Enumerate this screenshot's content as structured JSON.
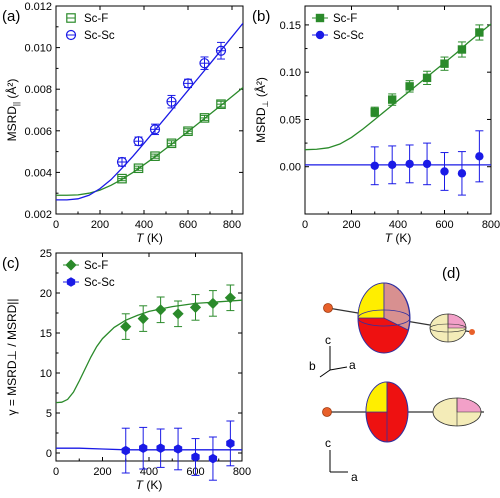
{
  "colors": {
    "green": "#2a8a2a",
    "blue": "#1a1ae6",
    "red": "#ee1111",
    "yellow": "#ffee00",
    "pink": "#f2a0c8",
    "cream": "#f4ecb8",
    "orange": "#e8602a"
  },
  "chart_data": [
    {
      "panel": "(a)",
      "type": "scatter",
      "ylabel": "MSRD",
      "ylabel_sub": "||",
      "ylabel_unit": " (Å²)",
      "xlabel": "T",
      "xlabel_unit": " (K)",
      "xlim": [
        0,
        850
      ],
      "ylim": [
        0.002,
        0.012
      ],
      "xticks": [
        0,
        200,
        400,
        600,
        800
      ],
      "yticks": [
        0.002,
        0.004,
        0.006,
        0.008,
        0.01,
        0.012
      ],
      "yticklabels": [
        "0.002",
        "0.004",
        "0.006",
        "0.008",
        "0.010",
        "0.012"
      ],
      "legend_position": "top-left",
      "series": [
        {
          "name": "Sc-F",
          "marker": "open-square",
          "color": "#2a8a2a",
          "x": [
            300,
            375,
            450,
            525,
            600,
            675,
            750
          ],
          "y": [
            0.0037,
            0.0042,
            0.00478,
            0.0054,
            0.00598,
            0.00662,
            0.00728
          ],
          "err": [
            0.0001,
            0.0001,
            0.0001,
            0.00012,
            0.00012,
            0.00012,
            0.00014
          ],
          "fit_x": [
            0,
            50,
            100,
            150,
            200,
            250,
            300,
            350,
            400,
            450,
            500,
            550,
            600,
            650,
            700,
            750,
            800,
            850
          ],
          "fit_y": [
            0.0029,
            0.0029,
            0.00292,
            0.003,
            0.00315,
            0.00338,
            0.00367,
            0.004,
            0.00437,
            0.00475,
            0.00515,
            0.00555,
            0.00596,
            0.00638,
            0.0068,
            0.00722,
            0.00765,
            0.00808
          ]
        },
        {
          "name": "Sc-Sc",
          "marker": "open-circle",
          "color": "#1a1ae6",
          "x": [
            300,
            375,
            450,
            525,
            600,
            675,
            750
          ],
          "y": [
            0.0045,
            0.0055,
            0.00607,
            0.0074,
            0.00828,
            0.00925,
            0.00985
          ],
          "err": [
            0.0002,
            0.0002,
            0.00025,
            0.0003,
            0.0002,
            0.0003,
            0.0004
          ],
          "fit_x": [
            0,
            50,
            100,
            150,
            200,
            250,
            300,
            350,
            400,
            450,
            500,
            550,
            600,
            650,
            700,
            750,
            800,
            850
          ],
          "fit_y": [
            0.00268,
            0.00268,
            0.00273,
            0.0029,
            0.00322,
            0.00365,
            0.0042,
            0.00478,
            0.0054,
            0.00603,
            0.00666,
            0.0073,
            0.00794,
            0.00858,
            0.00922,
            0.00987,
            0.01052,
            0.01117
          ]
        }
      ]
    },
    {
      "panel": "(b)",
      "type": "scatter",
      "ylabel": "MSRD",
      "ylabel_sub": "⊥",
      "ylabel_unit": " (Å²)",
      "xlabel": "T",
      "xlabel_unit": " (K)",
      "xlim": [
        0,
        800
      ],
      "ylim": [
        -0.05,
        0.17
      ],
      "xticks": [
        0,
        200,
        400,
        600,
        800
      ],
      "yticks": [
        0.0,
        0.05,
        0.1,
        0.15
      ],
      "yticklabels": [
        "0.00",
        "0.05",
        "0.10",
        "0.15"
      ],
      "legend_position": "top-left",
      "series": [
        {
          "name": "Sc-F",
          "marker": "filled-square",
          "color": "#2a8a2a",
          "x": [
            300,
            375,
            450,
            525,
            600,
            675,
            750
          ],
          "y": [
            0.058,
            0.071,
            0.085,
            0.094,
            0.109,
            0.124,
            0.142
          ],
          "err": [
            0.005,
            0.006,
            0.006,
            0.007,
            0.007,
            0.008,
            0.008
          ],
          "fit_x": [
            0,
            50,
            100,
            150,
            200,
            250,
            300,
            350,
            400,
            450,
            500,
            550,
            600,
            650,
            700,
            750,
            800
          ],
          "fit_y": [
            0.018,
            0.0185,
            0.02,
            0.024,
            0.031,
            0.04,
            0.05,
            0.06,
            0.07,
            0.08,
            0.09,
            0.1,
            0.11,
            0.12,
            0.131,
            0.141,
            0.151
          ]
        },
        {
          "name": "Sc-Sc",
          "marker": "filled-circle",
          "color": "#1a1ae6",
          "x": [
            300,
            375,
            450,
            525,
            600,
            675,
            750
          ],
          "y": [
            0.001,
            0.002,
            0.003,
            0.003,
            -0.005,
            -0.007,
            0.011
          ],
          "err": [
            0.02,
            0.02,
            0.02,
            0.022,
            0.02,
            0.023,
            0.027
          ],
          "fit_x": [
            0,
            200,
            400,
            600,
            800
          ],
          "fit_y": [
            0.002,
            0.002,
            0.002,
            0.002,
            0.002
          ]
        }
      ]
    },
    {
      "panel": "(c)",
      "type": "scatter",
      "ylabel": "γ = MSRD⊥ / MSRD||",
      "xlabel": "T",
      "xlabel_unit": " (K)",
      "xlim": [
        0,
        800
      ],
      "ylim": [
        -1,
        25
      ],
      "xticks": [
        0,
        200,
        400,
        600,
        800
      ],
      "yticks": [
        0,
        5,
        10,
        15,
        20,
        25
      ],
      "yticklabels": [
        "0",
        "5",
        "10",
        "15",
        "20",
        "25"
      ],
      "legend_position": "top-left",
      "series": [
        {
          "name": "Sc-F",
          "marker": "filled-diamond",
          "color": "#2a8a2a",
          "x": [
            300,
            375,
            450,
            525,
            600,
            675,
            750
          ],
          "y": [
            15.8,
            16.8,
            17.9,
            17.4,
            18.2,
            18.7,
            19.4
          ],
          "err": [
            1.6,
            1.6,
            1.6,
            1.6,
            1.6,
            1.6,
            1.6
          ],
          "fit_x": [
            0,
            25,
            50,
            75,
            100,
            125,
            150,
            175,
            200,
            250,
            300,
            350,
            400,
            450,
            500,
            550,
            600,
            650,
            700,
            750,
            800
          ],
          "fit_y": [
            6.3,
            6.35,
            6.7,
            7.6,
            9.0,
            10.5,
            12.0,
            13.3,
            14.3,
            15.7,
            16.6,
            17.2,
            17.7,
            18.0,
            18.3,
            18.5,
            18.7,
            18.8,
            18.9,
            19.0,
            19.1
          ]
        },
        {
          "name": "Sc-Sc",
          "marker": "filled-hexagon",
          "color": "#1a1ae6",
          "x": [
            300,
            375,
            450,
            525,
            600,
            675,
            750
          ],
          "y": [
            0.3,
            0.6,
            0.6,
            0.5,
            -0.5,
            -0.7,
            1.2
          ],
          "err": [
            2.8,
            2.6,
            2.4,
            2.6,
            2.3,
            2.7,
            2.8
          ],
          "fit_x": [
            0,
            100,
            200,
            300,
            400,
            500,
            600,
            700,
            800
          ],
          "fit_y": [
            0.6,
            0.6,
            0.5,
            0.4,
            0.4,
            0.4,
            0.4,
            0.4,
            0.4
          ]
        }
      ]
    }
  ],
  "panel_d": {
    "label": "(d)",
    "axes_top": {
      "c": "c",
      "b": "b",
      "a": "a"
    },
    "axes_bottom": {
      "c": "c",
      "a": "a"
    }
  }
}
